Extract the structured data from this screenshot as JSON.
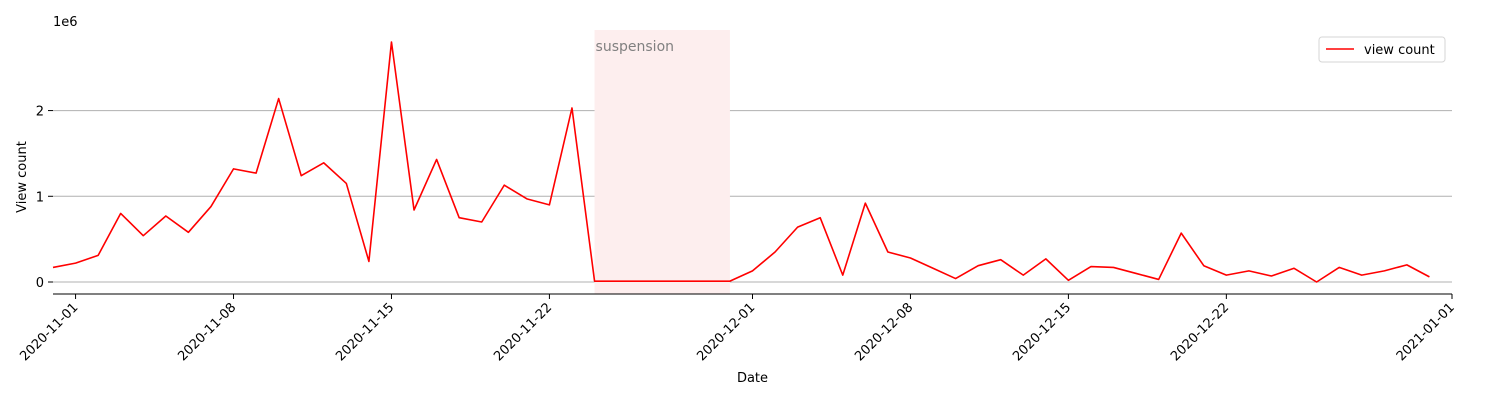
{
  "chart_data": {
    "type": "line",
    "title": "",
    "xlabel": "Date",
    "ylabel": "View count",
    "y_scale_label": "1e6",
    "xlim": [
      "2020-10-31",
      "2021-01-01"
    ],
    "ylim": [
      -0.14,
      2.94
    ],
    "y_ticks": [
      {
        "value": 0,
        "label": "0"
      },
      {
        "value": 1,
        "label": "1"
      },
      {
        "value": 2,
        "label": "2"
      }
    ],
    "x_ticks": [
      {
        "date": "2020-11-01",
        "label": "2020-11-01"
      },
      {
        "date": "2020-11-08",
        "label": "2020-11-08"
      },
      {
        "date": "2020-11-15",
        "label": "2020-11-15"
      },
      {
        "date": "2020-11-22",
        "label": "2020-11-22"
      },
      {
        "date": "2020-12-01",
        "label": "2020-12-01"
      },
      {
        "date": "2020-12-08",
        "label": "2020-12-08"
      },
      {
        "date": "2020-12-15",
        "label": "2020-12-15"
      },
      {
        "date": "2020-12-22",
        "label": "2020-12-22"
      },
      {
        "date": "2021-01-01",
        "label": "2021-01-01"
      }
    ],
    "grid": "horizontal",
    "legend_position": "top-right",
    "annotation": {
      "label": "suspension",
      "x_start": "2020-11-24",
      "x_end": "2020-11-30",
      "color": "#fdeeee"
    },
    "series": [
      {
        "name": "view count",
        "color": "#ff0000",
        "x": [
          "2020-10-31",
          "2020-11-01",
          "2020-11-02",
          "2020-11-03",
          "2020-11-04",
          "2020-11-05",
          "2020-11-06",
          "2020-11-07",
          "2020-11-08",
          "2020-11-09",
          "2020-11-10",
          "2020-11-11",
          "2020-11-12",
          "2020-11-13",
          "2020-11-14",
          "2020-11-15",
          "2020-11-16",
          "2020-11-17",
          "2020-11-18",
          "2020-11-19",
          "2020-11-20",
          "2020-11-21",
          "2020-11-22",
          "2020-11-23",
          "2020-11-24",
          "2020-11-25",
          "2020-11-26",
          "2020-11-27",
          "2020-11-28",
          "2020-11-29",
          "2020-11-30",
          "2020-12-01",
          "2020-12-02",
          "2020-12-03",
          "2020-12-04",
          "2020-12-05",
          "2020-12-06",
          "2020-12-07",
          "2020-12-08",
          "2020-12-09",
          "2020-12-10",
          "2020-12-11",
          "2020-12-12",
          "2020-12-13",
          "2020-12-14",
          "2020-12-15",
          "2020-12-16",
          "2020-12-17",
          "2020-12-18",
          "2020-12-19",
          "2020-12-20",
          "2020-12-21",
          "2020-12-22",
          "2020-12-23",
          "2020-12-24",
          "2020-12-25",
          "2020-12-26",
          "2020-12-27",
          "2020-12-28",
          "2020-12-29",
          "2020-12-30",
          "2020-12-31"
        ],
        "values": [
          0.17,
          0.22,
          0.31,
          0.8,
          0.54,
          0.77,
          0.58,
          0.88,
          1.32,
          1.27,
          2.14,
          1.24,
          1.39,
          1.15,
          0.24,
          2.8,
          0.84,
          1.43,
          0.75,
          0.7,
          1.13,
          0.97,
          0.9,
          2.03,
          0.01,
          0.01,
          0.01,
          0.01,
          0.01,
          0.01,
          0.01,
          0.13,
          0.35,
          0.64,
          0.75,
          0.08,
          0.92,
          0.35,
          0.28,
          0.16,
          0.04,
          0.19,
          0.26,
          0.08,
          0.27,
          0.02,
          0.18,
          0.17,
          0.1,
          0.03,
          0.57,
          0.19,
          0.08,
          0.13,
          0.07,
          0.16,
          0.0,
          0.17,
          0.08,
          0.13,
          0.2,
          0.06
        ]
      }
    ]
  }
}
